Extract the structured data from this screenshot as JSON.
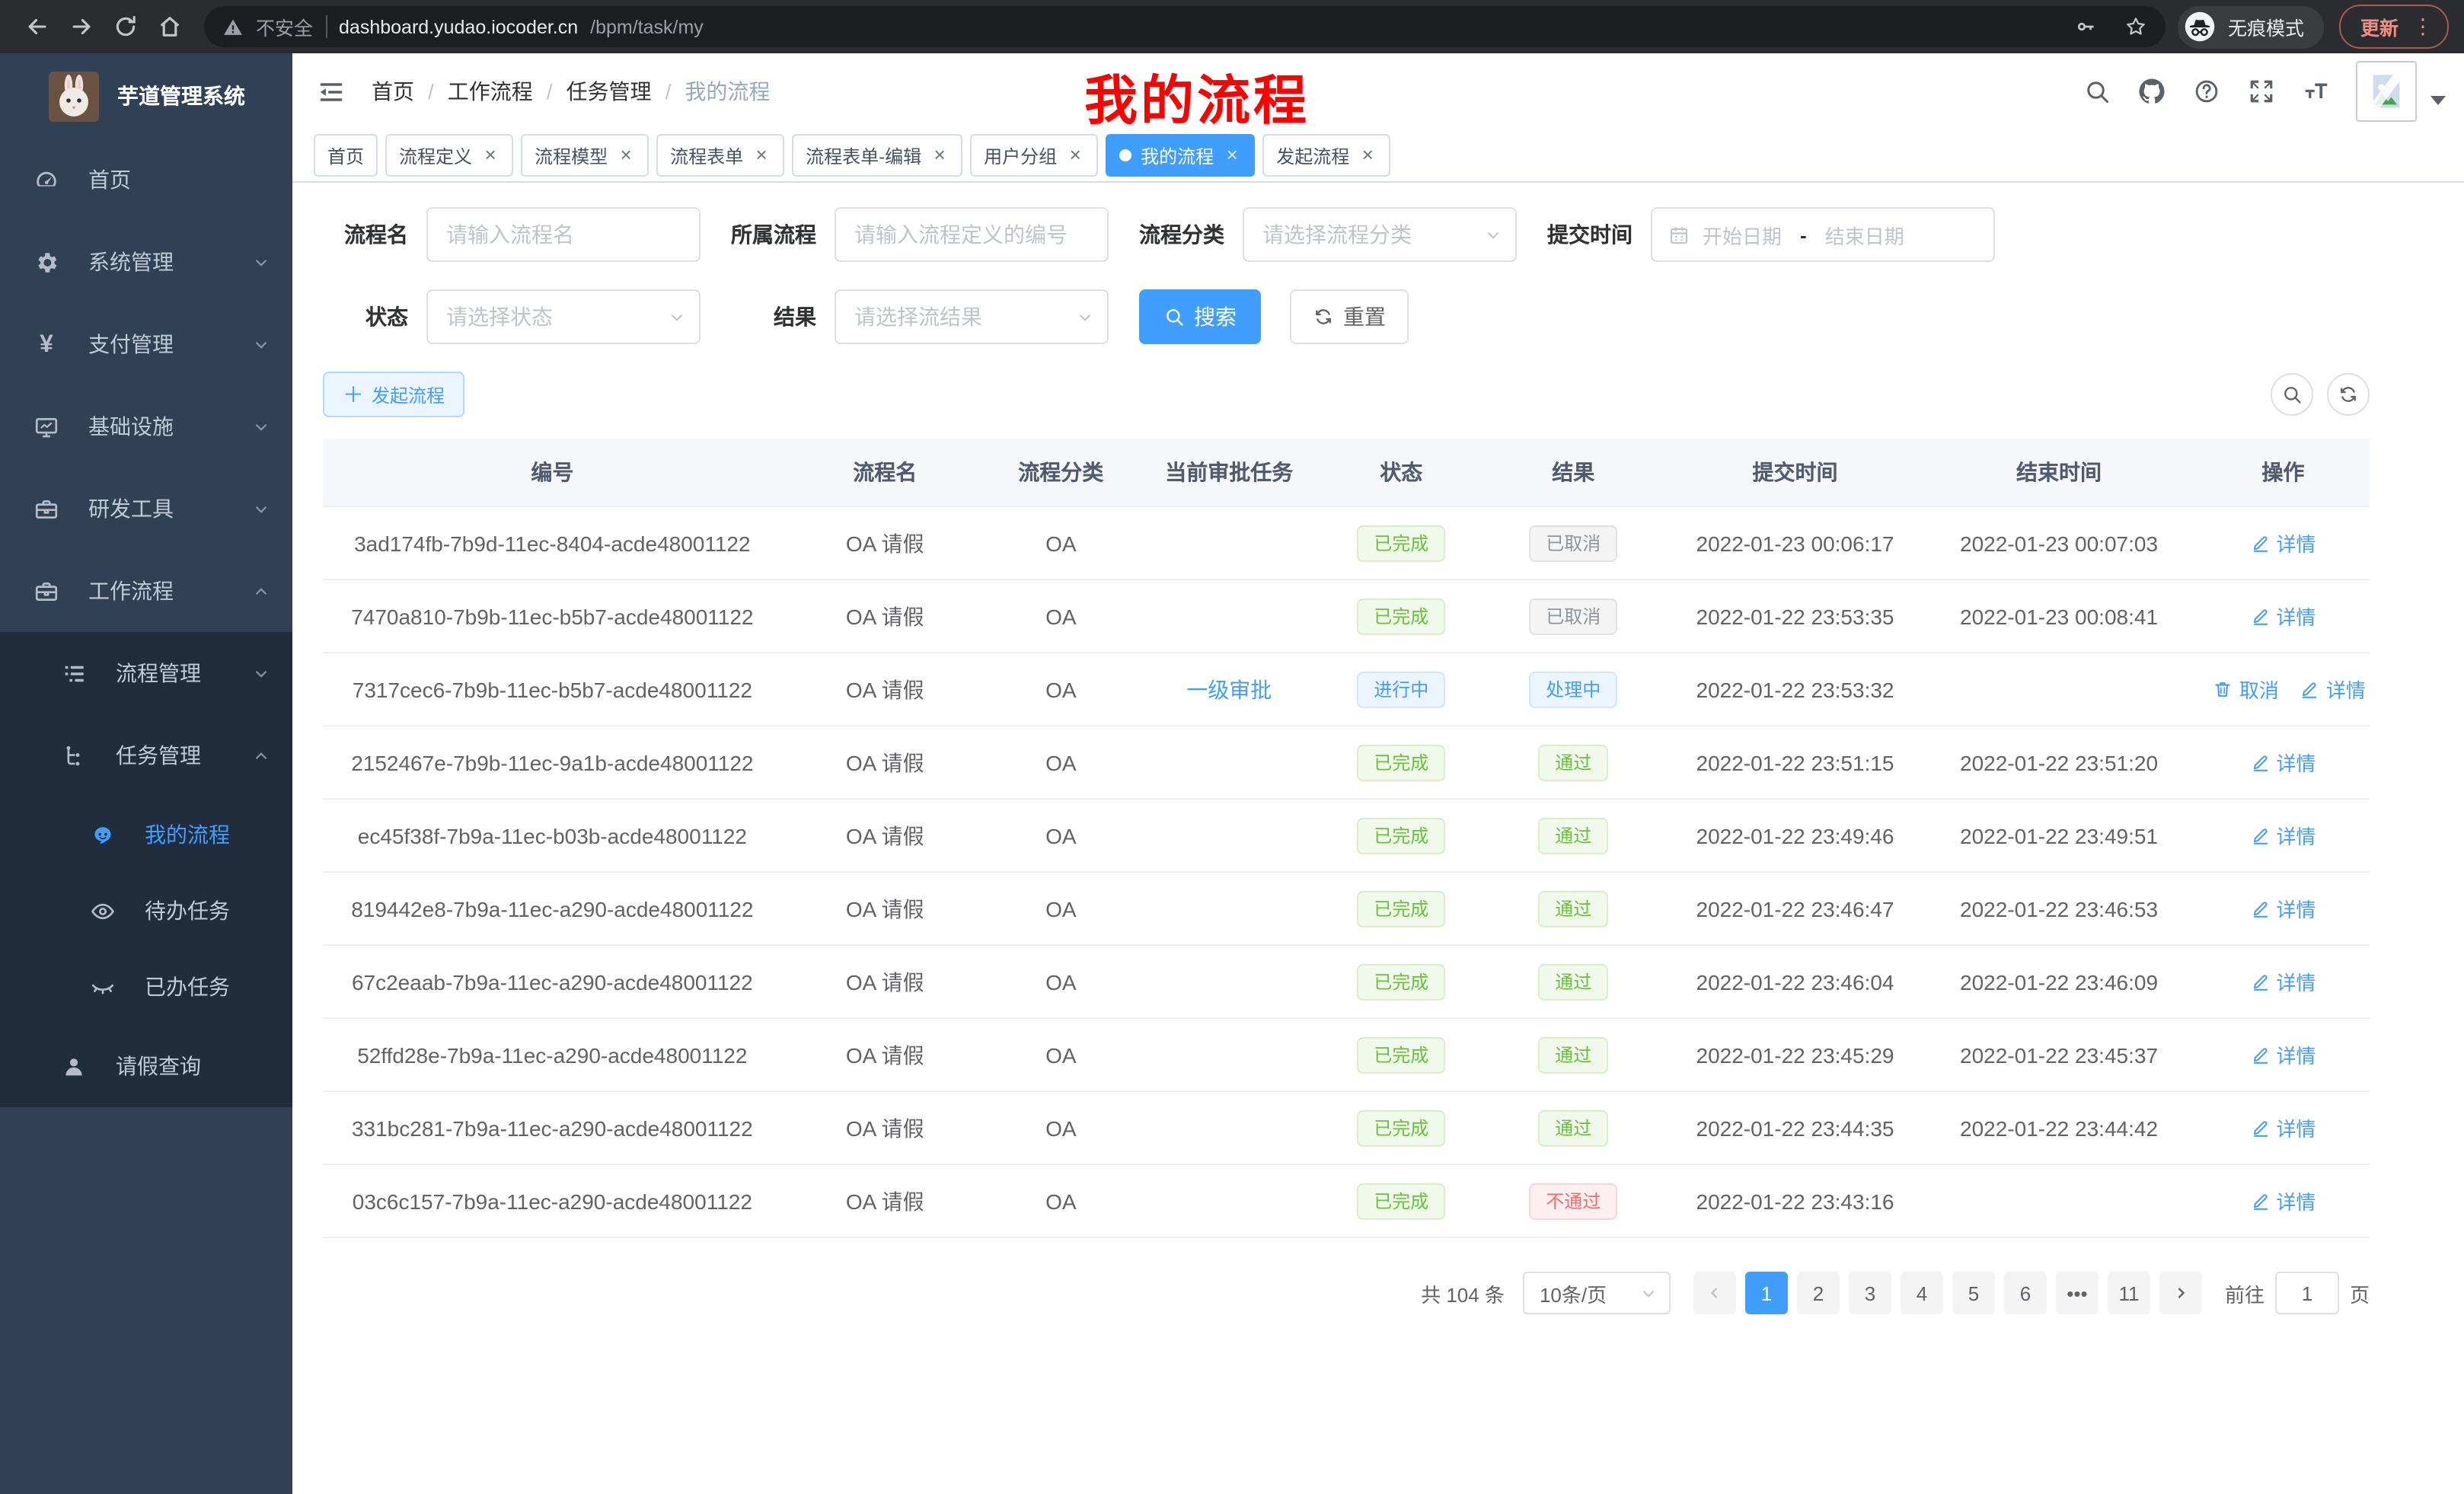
{
  "colors": {
    "accent": "#409eff",
    "success": "#67c23a",
    "info": "#909399",
    "danger": "#f56c6c",
    "sidebar_bg": "#304156",
    "submenu_bg": "#1f2d3d",
    "annotation_red": "#ff0000"
  },
  "browser": {
    "nav_icons": [
      "back-icon",
      "forward-icon",
      "reload-icon",
      "home-icon"
    ],
    "insecure_label": "不安全",
    "url_host": "dashboard.yudao.iocoder.cn",
    "url_path": "/bpm/task/my",
    "omnibox_icons": [
      "key-icon",
      "star-icon"
    ],
    "incognito_label": "无痕模式",
    "update_label": "更新"
  },
  "sidebar": {
    "title": "芋道管理系统",
    "menu_top": [
      {
        "name": "home",
        "label": "首页",
        "icon": "gauge-icon"
      },
      {
        "name": "system-management",
        "label": "系统管理",
        "icon": "gear-icon",
        "chevron": "down"
      },
      {
        "name": "payment-management",
        "label": "支付管理",
        "icon": "yen-icon",
        "chevron": "down"
      },
      {
        "name": "infrastructure",
        "label": "基础设施",
        "icon": "monitor-icon",
        "chevron": "down"
      },
      {
        "name": "dev-tools",
        "label": "研发工具",
        "icon": "toolbox-icon",
        "chevron": "down"
      },
      {
        "name": "workflow",
        "label": "工作流程",
        "icon": "briefcase-icon",
        "chevron": "up"
      }
    ],
    "workflow_submenu": [
      {
        "name": "process-management",
        "label": "流程管理",
        "icon": "list-tree-icon",
        "chevron": "down",
        "indent": "sub"
      },
      {
        "name": "task-management",
        "label": "任务管理",
        "icon": "flow-tree-icon",
        "chevron": "up",
        "indent": "sub"
      },
      {
        "name": "my-process",
        "label": "我的流程",
        "icon": "robot-icon",
        "indent": "leaf",
        "active": true
      },
      {
        "name": "todo-tasks",
        "label": "待办任务",
        "icon": "eye-icon",
        "indent": "leaf"
      },
      {
        "name": "done-tasks",
        "label": "已办任务",
        "icon": "eye-closed-icon",
        "indent": "leaf"
      },
      {
        "name": "leave-query",
        "label": "请假查询",
        "icon": "user-icon",
        "indent": "sub"
      }
    ]
  },
  "header": {
    "breadcrumbs": [
      "首页",
      "工作流程",
      "任务管理",
      "我的流程"
    ],
    "icons": [
      "search-icon",
      "github-icon",
      "help-icon",
      "fullscreen-icon",
      "font-size-icon"
    ],
    "annotation": "我的流程"
  },
  "tabs": [
    {
      "name": "home",
      "label": "首页",
      "closable": false
    },
    {
      "name": "process-definition",
      "label": "流程定义",
      "closable": true
    },
    {
      "name": "process-model",
      "label": "流程模型",
      "closable": true
    },
    {
      "name": "process-form",
      "label": "流程表单",
      "closable": true
    },
    {
      "name": "process-form-edit",
      "label": "流程表单-编辑",
      "closable": true
    },
    {
      "name": "user-group",
      "label": "用户分组",
      "closable": true
    },
    {
      "name": "my-process",
      "label": "我的流程",
      "closable": true,
      "active": true
    },
    {
      "name": "start-process",
      "label": "发起流程",
      "closable": true
    }
  ],
  "filters": {
    "name": {
      "label": "流程名",
      "placeholder": "请输入流程名"
    },
    "process": {
      "label": "所属流程",
      "placeholder": "请输入流程定义的编号"
    },
    "category": {
      "label": "流程分类",
      "placeholder": "请选择流程分类"
    },
    "submit_time": {
      "label": "提交时间",
      "start_placeholder": "开始日期",
      "separator": "-",
      "end_placeholder": "结束日期"
    },
    "status": {
      "label": "状态",
      "placeholder": "请选择状态"
    },
    "result": {
      "label": "结果",
      "placeholder": "请选择流结果"
    },
    "search_label": "搜索",
    "reset_label": "重置"
  },
  "toolbar": {
    "create_label": "发起流程"
  },
  "table": {
    "headers": [
      "编号",
      "流程名",
      "流程分类",
      "当前审批任务",
      "状态",
      "结果",
      "提交时间",
      "结束时间",
      "操作"
    ],
    "rows": [
      {
        "id": "3ad174fb-7b9d-11ec-8404-acde48001122",
        "name": "OA 请假",
        "category": "OA",
        "task": "",
        "status": {
          "text": "已完成",
          "type": "success"
        },
        "result": {
          "text": "已取消",
          "type": "info"
        },
        "submit": "2022-01-23 00:06:17",
        "end": "2022-01-23 00:07:03",
        "actions": [
          {
            "name": "detail-action",
            "icon": "edit-icon",
            "label": "详情"
          }
        ]
      },
      {
        "id": "7470a810-7b9b-11ec-b5b7-acde48001122",
        "name": "OA 请假",
        "category": "OA",
        "task": "",
        "status": {
          "text": "已完成",
          "type": "success"
        },
        "result": {
          "text": "已取消",
          "type": "info"
        },
        "submit": "2022-01-22 23:53:35",
        "end": "2022-01-23 00:08:41",
        "actions": [
          {
            "name": "detail-action",
            "icon": "edit-icon",
            "label": "详情"
          }
        ]
      },
      {
        "id": "7317cec6-7b9b-11ec-b5b7-acde48001122",
        "name": "OA 请假",
        "category": "OA",
        "task": "一级审批",
        "status": {
          "text": "进行中",
          "type": "primary"
        },
        "result": {
          "text": "处理中",
          "type": "primary"
        },
        "submit": "2022-01-22 23:53:32",
        "end": "",
        "actions": [
          {
            "name": "cancel-action",
            "icon": "delete-icon",
            "label": "取消"
          },
          {
            "name": "detail-action",
            "icon": "edit-icon",
            "label": "详情"
          }
        ]
      },
      {
        "id": "2152467e-7b9b-11ec-9a1b-acde48001122",
        "name": "OA 请假",
        "category": "OA",
        "task": "",
        "status": {
          "text": "已完成",
          "type": "success"
        },
        "result": {
          "text": "通过",
          "type": "success"
        },
        "submit": "2022-01-22 23:51:15",
        "end": "2022-01-22 23:51:20",
        "actions": [
          {
            "name": "detail-action",
            "icon": "edit-icon",
            "label": "详情"
          }
        ]
      },
      {
        "id": "ec45f38f-7b9a-11ec-b03b-acde48001122",
        "name": "OA 请假",
        "category": "OA",
        "task": "",
        "status": {
          "text": "已完成",
          "type": "success"
        },
        "result": {
          "text": "通过",
          "type": "success"
        },
        "submit": "2022-01-22 23:49:46",
        "end": "2022-01-22 23:49:51",
        "actions": [
          {
            "name": "detail-action",
            "icon": "edit-icon",
            "label": "详情"
          }
        ]
      },
      {
        "id": "819442e8-7b9a-11ec-a290-acde48001122",
        "name": "OA 请假",
        "category": "OA",
        "task": "",
        "status": {
          "text": "已完成",
          "type": "success"
        },
        "result": {
          "text": "通过",
          "type": "success"
        },
        "submit": "2022-01-22 23:46:47",
        "end": "2022-01-22 23:46:53",
        "actions": [
          {
            "name": "detail-action",
            "icon": "edit-icon",
            "label": "详情"
          }
        ]
      },
      {
        "id": "67c2eaab-7b9a-11ec-a290-acde48001122",
        "name": "OA 请假",
        "category": "OA",
        "task": "",
        "status": {
          "text": "已完成",
          "type": "success"
        },
        "result": {
          "text": "通过",
          "type": "success"
        },
        "submit": "2022-01-22 23:46:04",
        "end": "2022-01-22 23:46:09",
        "actions": [
          {
            "name": "detail-action",
            "icon": "edit-icon",
            "label": "详情"
          }
        ]
      },
      {
        "id": "52ffd28e-7b9a-11ec-a290-acde48001122",
        "name": "OA 请假",
        "category": "OA",
        "task": "",
        "status": {
          "text": "已完成",
          "type": "success"
        },
        "result": {
          "text": "通过",
          "type": "success"
        },
        "submit": "2022-01-22 23:45:29",
        "end": "2022-01-22 23:45:37",
        "actions": [
          {
            "name": "detail-action",
            "icon": "edit-icon",
            "label": "详情"
          }
        ]
      },
      {
        "id": "331bc281-7b9a-11ec-a290-acde48001122",
        "name": "OA 请假",
        "category": "OA",
        "task": "",
        "status": {
          "text": "已完成",
          "type": "success"
        },
        "result": {
          "text": "通过",
          "type": "success"
        },
        "submit": "2022-01-22 23:44:35",
        "end": "2022-01-22 23:44:42",
        "actions": [
          {
            "name": "detail-action",
            "icon": "edit-icon",
            "label": "详情"
          }
        ]
      },
      {
        "id": "03c6c157-7b9a-11ec-a290-acde48001122",
        "name": "OA 请假",
        "category": "OA",
        "task": "",
        "status": {
          "text": "已完成",
          "type": "success"
        },
        "result": {
          "text": "不通过",
          "type": "danger"
        },
        "submit": "2022-01-22 23:43:16",
        "end": "",
        "actions": [
          {
            "name": "detail-action",
            "icon": "edit-icon",
            "label": "详情"
          }
        ]
      }
    ]
  },
  "pagination": {
    "total_label": "共 104 条",
    "page_size": "10条/页",
    "pages": [
      "1",
      "2",
      "3",
      "4",
      "5",
      "6",
      "•••",
      "11"
    ],
    "active_page": "1",
    "goto_label": "前往",
    "goto_value": "1",
    "page_suffix": "页"
  }
}
